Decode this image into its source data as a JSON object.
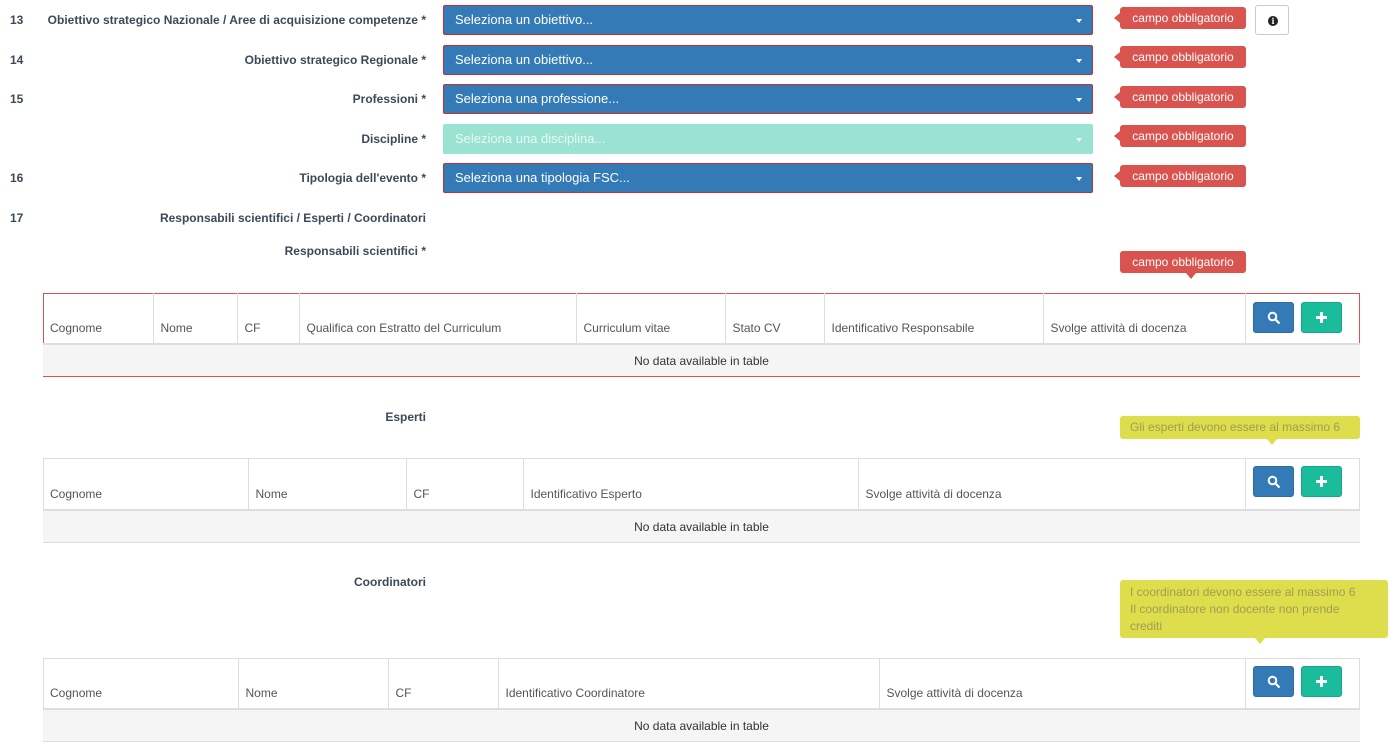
{
  "rows": [
    {
      "num": "13",
      "label": "Obiettivo strategico Nazionale / Aree di acquisizione competenze *",
      "placeholder": "Seleziona un obiettivo...",
      "tip": "campo obbligatorio"
    },
    {
      "num": "14",
      "label": "Obiettivo strategico Regionale *",
      "placeholder": "Seleziona un obiettivo...",
      "tip": "campo obbligatorio"
    },
    {
      "num": "15",
      "label": "Professioni *",
      "placeholder": "Seleziona una professione...",
      "tip": "campo obbligatorio"
    },
    {
      "num": "",
      "label": "Discipline *",
      "placeholder": "Seleziona una disciplina...",
      "tip": "campo obbligatorio"
    },
    {
      "num": "16",
      "label": "Tipologia dell'evento *",
      "placeholder": "Seleziona una tipologia FSC...",
      "tip": "campo obbligatorio"
    }
  ],
  "section17": {
    "num": "17",
    "label": "Responsabili scientifici / Esperti / Coordinatori"
  },
  "responsabili": {
    "label": "Responsabili scientifici *",
    "tip": "campo obbligatorio",
    "columns": [
      "Cognome",
      "Nome",
      "CF",
      "Qualifica con Estratto del Curriculum",
      "Curriculum vitae",
      "Stato CV",
      "Identificativo Responsabile",
      "Svolge attività di docenza"
    ],
    "empty": "No data available in table"
  },
  "esperti": {
    "label": "Esperti",
    "tip": "Gli esperti devono essere al massimo 6",
    "columns": [
      "Cognome",
      "Nome",
      "CF",
      "Identificativo Esperto",
      "Svolge attività di docenza"
    ],
    "empty": "No data available in table"
  },
  "coordinatori": {
    "label": "Coordinatori",
    "tip_line1": "I coordinatori devono essere al massimo 6",
    "tip_line2": "Il coordinatore non docente non prende",
    "tip_line3": "crediti",
    "columns": [
      "Cognome",
      "Nome",
      "CF",
      "Identificativo Coordinatore",
      "Svolge attività di docenza"
    ],
    "empty": "No data available in table"
  },
  "icons": {
    "info": "info-circle-icon",
    "search": "search-icon",
    "add": "plus-icon"
  },
  "colors": {
    "primary": "#337ab7",
    "danger": "#d9534f",
    "success": "#1abc9c",
    "warning_tip": "#dede4c",
    "disabled_select": "#9ae2d2"
  }
}
